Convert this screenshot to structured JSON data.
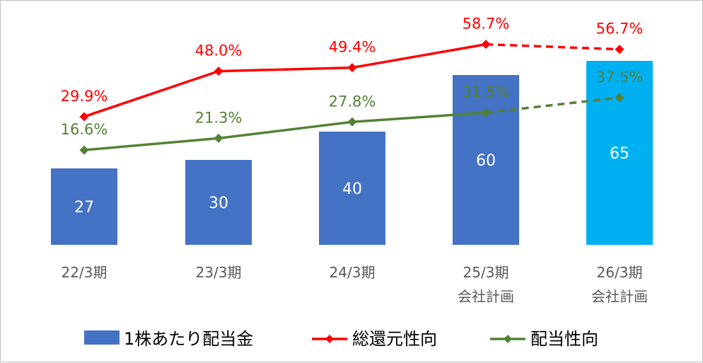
{
  "chart_data": {
    "type": "bar",
    "categories": [
      [
        "22/3期"
      ],
      [
        "23/3期"
      ],
      [
        "24/3期"
      ],
      [
        "25/3期",
        "会社計画"
      ],
      [
        "26/3期",
        "会社計画"
      ]
    ],
    "series": [
      {
        "name": "1株あたり配当金",
        "type": "bar",
        "values": [
          27,
          30,
          40,
          60,
          65
        ],
        "labels": [
          "27",
          "30",
          "40",
          "60",
          "65"
        ],
        "color": "#4472C4",
        "highlight_color": "#00B0F0",
        "highlight_index": 4
      },
      {
        "name": "総還元性向",
        "type": "line",
        "values": [
          29.9,
          48.0,
          49.4,
          58.7,
          56.7
        ],
        "labels": [
          "29.9%",
          "48.0%",
          "49.4%",
          "58.7%",
          "56.7%"
        ],
        "color": "#FF0000",
        "dashed_from_index": 3
      },
      {
        "name": "配当性向",
        "type": "line",
        "values": [
          16.6,
          21.3,
          27.8,
          31.5,
          37.5
        ],
        "labels": [
          "16.6%",
          "21.3%",
          "27.8%",
          "31.5%",
          "37.5%"
        ],
        "color": "#548235",
        "dashed_from_index": 3
      }
    ],
    "legend": {
      "items": [
        "1株あたり配当金",
        "総還元性向",
        "配当性向"
      ],
      "position": "bottom"
    },
    "grid": false
  }
}
